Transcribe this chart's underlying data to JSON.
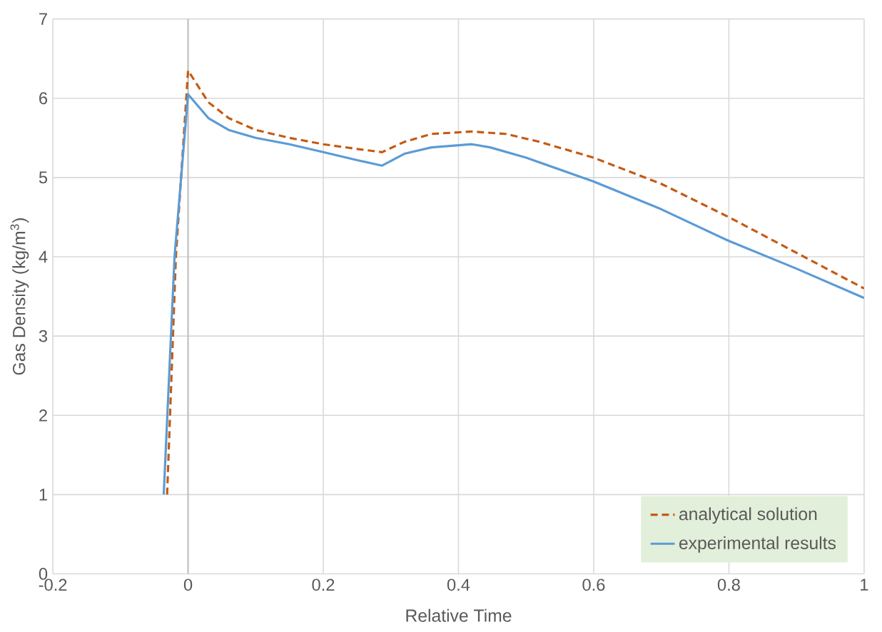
{
  "chart_data": {
    "type": "line",
    "xlabel": "Relative Time",
    "ylabel": "Gas Density (kg/m$^{3}$)",
    "xlim": [
      -0.2,
      1
    ],
    "xticks": [
      -0.2,
      0,
      0.2,
      0.4,
      0.6,
      0.8,
      1
    ],
    "ylim": [
      0,
      7
    ],
    "yticks": [
      0,
      1,
      2,
      3,
      4,
      5,
      6,
      7
    ],
    "grid": true,
    "legend": "bottom right",
    "series": [
      {
        "name": "analytical solution",
        "color": "#c55a11",
        "line_style": "dashed",
        "x": [
          -0.031,
          -0.018,
          0,
          0.03,
          0.06,
          0.1,
          0.15,
          0.2,
          0.25,
          0.287,
          0.32,
          0.36,
          0.42,
          0.47,
          0.52,
          0.6,
          0.7,
          0.8,
          0.9,
          1.0
        ],
        "values": [
          1,
          4,
          6.35,
          5.95,
          5.75,
          5.6,
          5.5,
          5.42,
          5.36,
          5.32,
          5.45,
          5.55,
          5.58,
          5.55,
          5.45,
          5.25,
          4.92,
          4.5,
          4.05,
          3.6
        ]
      },
      {
        "name": "experimental results",
        "color": "#5b9bd5",
        "line_style": "solid",
        "x": [
          -0.036,
          -0.02,
          0,
          0.03,
          0.06,
          0.1,
          0.15,
          0.2,
          0.25,
          0.287,
          0.32,
          0.36,
          0.42,
          0.447,
          0.5,
          0.6,
          0.7,
          0.8,
          0.9,
          1.0
        ],
        "values": [
          1,
          4,
          6.05,
          5.75,
          5.6,
          5.5,
          5.42,
          5.32,
          5.22,
          5.15,
          5.3,
          5.38,
          5.42,
          5.38,
          5.25,
          4.95,
          4.6,
          4.2,
          3.85,
          3.48
        ]
      }
    ]
  }
}
